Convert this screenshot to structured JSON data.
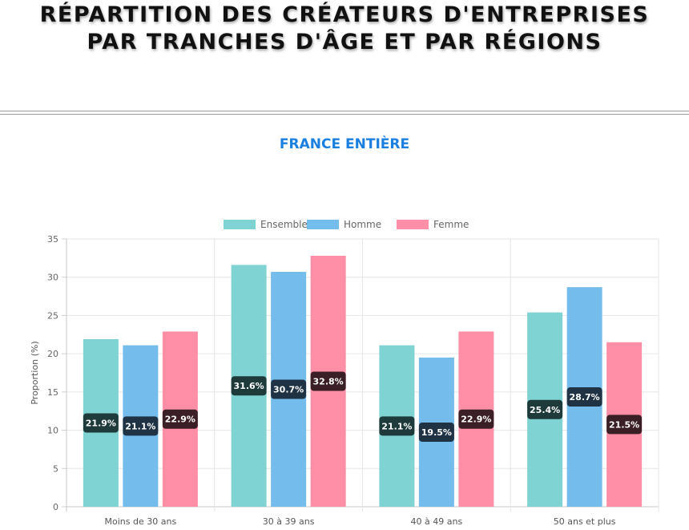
{
  "header": {
    "title_line1": "RÉPARTITION DES CRÉATEURS D'ENTREPRISES",
    "title_line2": "PAR TRANCHES D'ÂGE ET PAR RÉGIONS"
  },
  "section": {
    "title": "FRANCE ENTIÈRE"
  },
  "chart_data": {
    "type": "bar",
    "categories": [
      "Moins de 30 ans",
      "30 à 39 ans",
      "40 à 49 ans",
      "50 ans et plus"
    ],
    "series": [
      {
        "name": "Ensemble",
        "values": [
          21.9,
          31.6,
          21.1,
          25.4
        ],
        "color": "#7fd3d3",
        "label_bg": "#1f3a3a"
      },
      {
        "name": "Homme",
        "values": [
          21.1,
          30.7,
          19.5,
          28.7
        ],
        "color": "#74bcec",
        "label_bg": "#1f3345"
      },
      {
        "name": "Femme",
        "values": [
          22.9,
          32.8,
          22.9,
          21.5
        ],
        "color": "#ff8fa6",
        "label_bg": "#3a1f26"
      }
    ],
    "value_labels": [
      [
        "21.9%",
        "31.6%",
        "21.1%",
        "25.4%"
      ],
      [
        "21.1%",
        "30.7%",
        "19.5%",
        "28.7%"
      ],
      [
        "22.9%",
        "32.8%",
        "22.9%",
        "21.5%"
      ]
    ],
    "ylabel": "Proportion (%)",
    "xlabel": "",
    "ylim": [
      0,
      35
    ],
    "yticks": [
      "0",
      "5",
      "10",
      "15",
      "20",
      "25",
      "30",
      "35"
    ],
    "grid": true,
    "legend_position": "top"
  }
}
